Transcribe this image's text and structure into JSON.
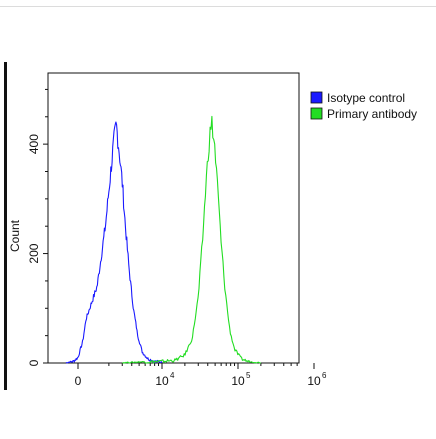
{
  "chart_data": {
    "type": "line",
    "title": "",
    "xlabel": "",
    "ylabel": "Count",
    "x_scale": "biexponential",
    "x_ticks": [
      {
        "value": 0,
        "base": "0",
        "exp": ""
      },
      {
        "value": 10000,
        "base": "10",
        "exp": "4"
      },
      {
        "value": 100000,
        "base": "10",
        "exp": "5"
      },
      {
        "value": 1000000,
        "base": "10",
        "exp": "6"
      }
    ],
    "y_ticks": [
      0,
      200,
      400
    ],
    "ylim": [
      0,
      530
    ],
    "legend_position": "right",
    "grid": false,
    "series": [
      {
        "name": "Isotype control",
        "color": "#1a1aff",
        "peak_x": 2500,
        "peak_count": 435,
        "points": [
          [
            -1500,
            0
          ],
          [
            -600,
            3
          ],
          [
            0,
            10
          ],
          [
            600,
            40
          ],
          [
            1000,
            80
          ],
          [
            1400,
            140
          ],
          [
            1800,
            250
          ],
          [
            2100,
            345
          ],
          [
            2300,
            400
          ],
          [
            2500,
            435
          ],
          [
            2700,
            395
          ],
          [
            3000,
            330
          ],
          [
            3300,
            250
          ],
          [
            3700,
            170
          ],
          [
            4200,
            100
          ],
          [
            4800,
            50
          ],
          [
            5500,
            20
          ],
          [
            6500,
            8
          ],
          [
            8000,
            3
          ],
          [
            10000,
            1
          ]
        ]
      },
      {
        "name": "Primary antibody",
        "color": "#22dd22",
        "peak_x": 45000,
        "peak_count": 440,
        "points": [
          [
            3000,
            0
          ],
          [
            6000,
            2
          ],
          [
            10000,
            3
          ],
          [
            15000,
            5
          ],
          [
            20000,
            15
          ],
          [
            25000,
            45
          ],
          [
            30000,
            120
          ],
          [
            34000,
            220
          ],
          [
            38000,
            330
          ],
          [
            42000,
            410
          ],
          [
            45000,
            440
          ],
          [
            49000,
            400
          ],
          [
            54000,
            320
          ],
          [
            60000,
            220
          ],
          [
            68000,
            130
          ],
          [
            78000,
            60
          ],
          [
            90000,
            25
          ],
          [
            110000,
            8
          ],
          [
            140000,
            2
          ],
          [
            200000,
            0
          ]
        ]
      }
    ]
  }
}
